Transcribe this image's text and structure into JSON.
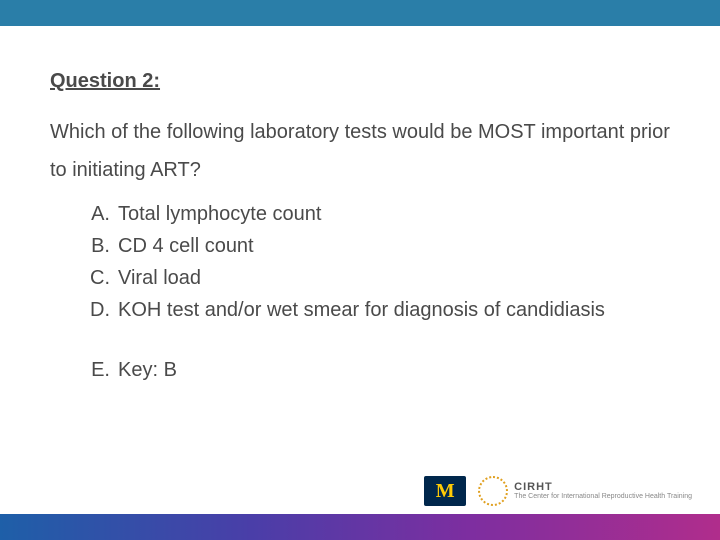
{
  "colors": {
    "top_bar": "#2a7ea8",
    "body_text": "#4a4a4a",
    "gradient_stops": [
      "#1e5fa8",
      "#4a3ea8",
      "#7d2ea0",
      "#b02d8c"
    ],
    "um_bg": "#00274c",
    "um_fg": "#ffcb05",
    "cirht_accent": "#e0a020"
  },
  "typography": {
    "family": "Trebuchet MS",
    "title_fontsize": 20,
    "title_weight": "bold",
    "body_fontsize": 20,
    "line_height": 1.5
  },
  "question": {
    "title": "Question 2:",
    "stem": "Which of the following laboratory tests would be MOST important prior to initiating ART?",
    "options": [
      {
        "letter": "A.",
        "text": "Total lymphocyte count"
      },
      {
        "letter": "B.",
        "text": "CD 4 cell count"
      },
      {
        "letter": "C.",
        "text": "Viral load"
      },
      {
        "letter": "D.",
        "text": "KOH test and/or wet smear for diagnosis of candidiasis"
      }
    ],
    "key": {
      "letter": "E.",
      "text": "Key: B"
    }
  },
  "logos": {
    "um_letter": "M",
    "cirht_label": "CIRHT",
    "cirht_sub": "The Center for International Reproductive Health Training"
  }
}
